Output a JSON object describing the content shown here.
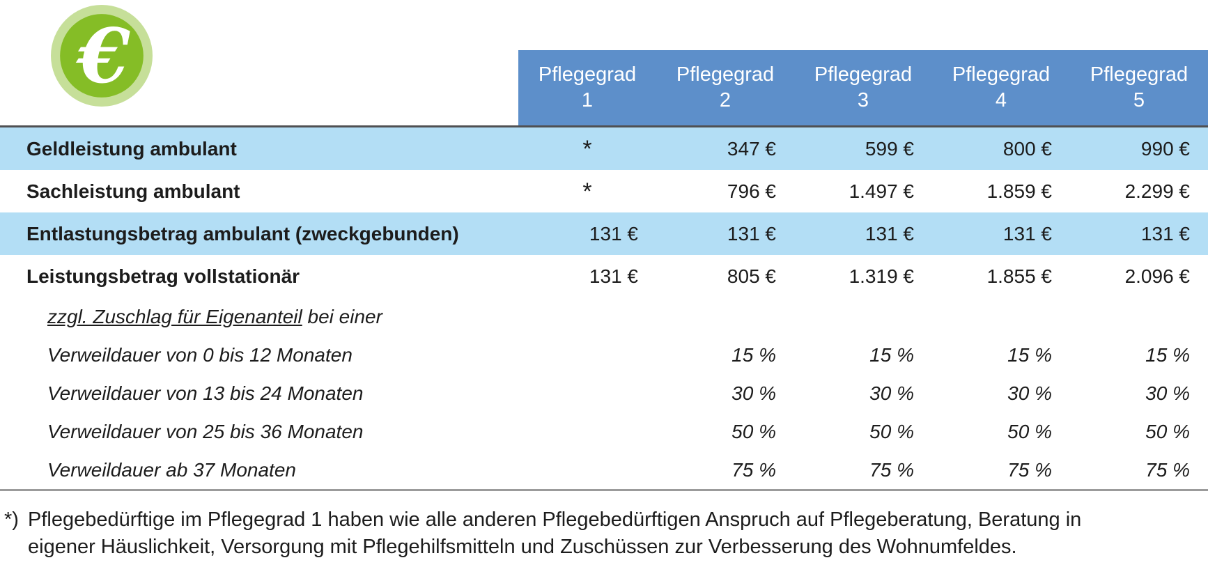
{
  "colors": {
    "header_bg": "#5d8fca",
    "header_fg": "#ffffff",
    "row_highlight_bg": "#b3def5",
    "icon_outer_green": "#c6df99",
    "icon_inner_green": "#85bd26",
    "icon_glyph": "#ffffff",
    "top_rule": "#4f5052",
    "bottom_rule": "#9b9b9b",
    "text": "#1c1c1c"
  },
  "icon": {
    "glyph": "€",
    "name": "euro-coin-icon"
  },
  "table": {
    "column_headers": [
      {
        "line1": "Pflegegrad",
        "line2": "1"
      },
      {
        "line1": "Pflegegrad",
        "line2": "2"
      },
      {
        "line1": "Pflegegrad",
        "line2": "3"
      },
      {
        "line1": "Pflegegrad",
        "line2": "4"
      },
      {
        "line1": "Pflegegrad",
        "line2": "5"
      }
    ],
    "rows": [
      {
        "label": "Geldleistung ambulant",
        "style": "bold",
        "highlight": true,
        "values": [
          "*",
          "347 €",
          "599 €",
          "800 €",
          "990 €"
        ]
      },
      {
        "label": "Sachleistung ambulant",
        "style": "bold",
        "highlight": false,
        "values": [
          "*",
          "796 €",
          "1.497 €",
          "1.859 €",
          "2.299 €"
        ]
      },
      {
        "label": "Entlastungsbetrag ambulant (zweckgebunden)",
        "style": "bold",
        "highlight": true,
        "values": [
          "131 €",
          "131 €",
          "131 €",
          "131 €",
          "131 €"
        ]
      },
      {
        "label": "Leistungsbetrag vollstationär",
        "style": "bold",
        "highlight": false,
        "values": [
          "131 €",
          "805 €",
          "1.319 €",
          "1.855 €",
          "2.096 €"
        ]
      },
      {
        "label_underlined": "zzgl. Zuschlag für Eigenanteil",
        "label_rest": " bei einer",
        "style": "italic",
        "highlight": false,
        "values": [
          "",
          "",
          "",
          "",
          ""
        ]
      },
      {
        "label": "Verweildauer von 0 bis 12 Monaten",
        "style": "italic",
        "highlight": false,
        "values": [
          "",
          "15 %",
          "15 %",
          "15 %",
          "15 %"
        ]
      },
      {
        "label": "Verweildauer von 13 bis 24 Monaten",
        "style": "italic",
        "highlight": false,
        "values": [
          "",
          "30 %",
          "30 %",
          "30 %",
          "30 %"
        ]
      },
      {
        "label": "Verweildauer von 25 bis 36 Monaten",
        "style": "italic",
        "highlight": false,
        "values": [
          "",
          "50 %",
          "50 %",
          "50 %",
          "50 %"
        ]
      },
      {
        "label": "Verweildauer ab 37 Monaten",
        "style": "italic",
        "highlight": false,
        "values": [
          "",
          "75 %",
          "75 %",
          "75 %",
          "75 %"
        ]
      }
    ]
  },
  "footnote": {
    "marker": "*)",
    "text": "Pflegebedürftige im Pflegegrad 1 haben wie alle anderen Pflegebedürftigen Anspruch auf Pflegeberatung, Beratung in eigener Häuslichkeit, Versorgung mit Pflegehilfsmitteln und Zuschüssen zur Verbesserung des Wohnumfeldes."
  }
}
